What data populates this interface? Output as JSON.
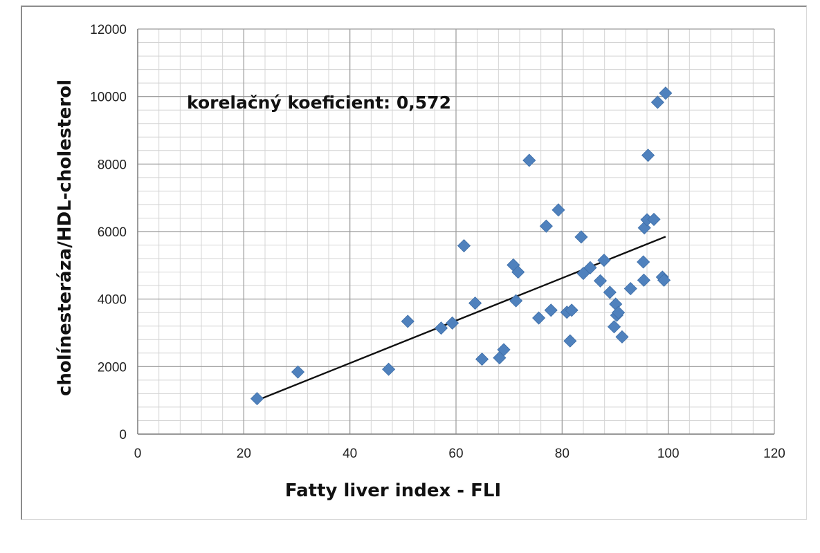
{
  "chart_data": {
    "type": "scatter",
    "xlabel": "Fatty liver index - FLI",
    "ylabel": "cholínesteráza/HDL-cholesterol",
    "annotation": "korelačný koeficient: 0,572",
    "xlim": [
      0,
      120
    ],
    "ylim": [
      0,
      12000
    ],
    "x_ticks": [
      "0",
      "20",
      "40",
      "60",
      "80",
      "100",
      "120"
    ],
    "y_ticks": [
      "0",
      "2000",
      "4000",
      "6000",
      "8000",
      "10000",
      "12000"
    ],
    "grid": true,
    "marker_color": "#4f81bd",
    "trendline": {
      "x": [
        22.5,
        99.5
      ],
      "y": [
        1000,
        5850
      ]
    },
    "points": [
      {
        "x": 22.5,
        "y": 1050
      },
      {
        "x": 30.2,
        "y": 1840
      },
      {
        "x": 47.3,
        "y": 1920
      },
      {
        "x": 50.9,
        "y": 3340
      },
      {
        "x": 57.2,
        "y": 3140
      },
      {
        "x": 59.3,
        "y": 3290
      },
      {
        "x": 61.5,
        "y": 5580
      },
      {
        "x": 63.6,
        "y": 3880
      },
      {
        "x": 64.9,
        "y": 2220
      },
      {
        "x": 68.2,
        "y": 2260
      },
      {
        "x": 69.0,
        "y": 2500
      },
      {
        "x": 70.8,
        "y": 5010
      },
      {
        "x": 71.3,
        "y": 3950
      },
      {
        "x": 71.7,
        "y": 4800
      },
      {
        "x": 73.8,
        "y": 8110
      },
      {
        "x": 75.6,
        "y": 3440
      },
      {
        "x": 77.0,
        "y": 6160
      },
      {
        "x": 77.9,
        "y": 3670
      },
      {
        "x": 79.3,
        "y": 6640
      },
      {
        "x": 80.9,
        "y": 3610
      },
      {
        "x": 81.5,
        "y": 2760
      },
      {
        "x": 81.8,
        "y": 3670
      },
      {
        "x": 83.6,
        "y": 5840
      },
      {
        "x": 84.0,
        "y": 4760
      },
      {
        "x": 85.3,
        "y": 4930
      },
      {
        "x": 87.2,
        "y": 4540
      },
      {
        "x": 87.9,
        "y": 5150
      },
      {
        "x": 89.0,
        "y": 4200
      },
      {
        "x": 89.8,
        "y": 3180
      },
      {
        "x": 90.1,
        "y": 3850
      },
      {
        "x": 90.3,
        "y": 3520
      },
      {
        "x": 90.6,
        "y": 3600
      },
      {
        "x": 91.3,
        "y": 2880
      },
      {
        "x": 92.9,
        "y": 4310
      },
      {
        "x": 95.3,
        "y": 5100
      },
      {
        "x": 95.4,
        "y": 4560
      },
      {
        "x": 95.5,
        "y": 6110
      },
      {
        "x": 96.0,
        "y": 6350
      },
      {
        "x": 96.2,
        "y": 8260
      },
      {
        "x": 97.3,
        "y": 6360
      },
      {
        "x": 98.0,
        "y": 9830
      },
      {
        "x": 98.9,
        "y": 4650
      },
      {
        "x": 99.2,
        "y": 4560
      },
      {
        "x": 99.5,
        "y": 10100
      }
    ]
  }
}
